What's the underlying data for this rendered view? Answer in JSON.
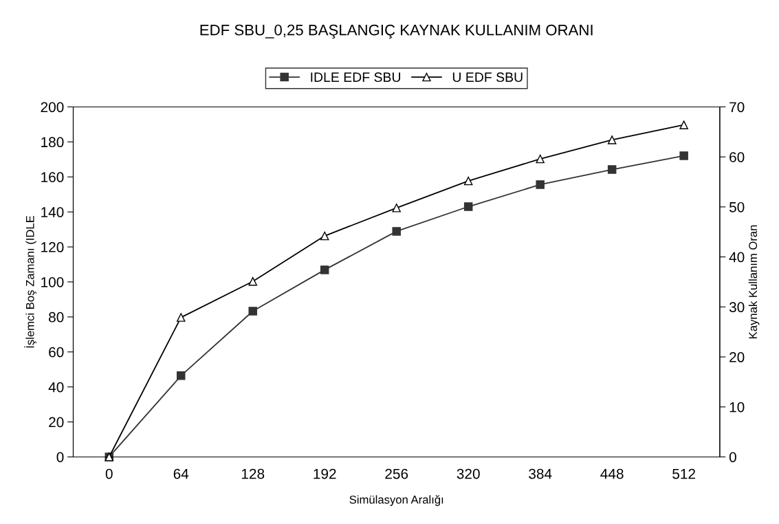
{
  "chart_data": {
    "type": "line",
    "title": "EDF SBU_0,25 BAŞLANGIÇ KAYNAK KULLANIM ORANI",
    "xlabel": "Simülasyon Aralığı",
    "ylabel": "İşlemci Boş Zamanı (IDLE",
    "y2label": "Kaynak Kullanım Oran",
    "categories": [
      "0",
      "64",
      "128",
      "192",
      "256",
      "320",
      "384",
      "448",
      "512"
    ],
    "series": [
      {
        "name": "IDLE EDF SBU",
        "color": "#333333",
        "marker": "square",
        "values": [
          0,
          46.4,
          83.3,
          106.9,
          128.9,
          143,
          155.6,
          164.2,
          172.1
        ]
      },
      {
        "name": "U EDF SBU",
        "color": "#000000",
        "marker": "triangle",
        "axis": "y2",
        "values": [
          0,
          27.9,
          35.1,
          44.2,
          49.8,
          55.2,
          59.6,
          63.4,
          66.4
        ]
      }
    ],
    "ylim": [
      0,
      200
    ],
    "yticks": [
      0,
      20,
      40,
      60,
      80,
      100,
      120,
      140,
      160,
      180,
      200
    ],
    "y2lim": [
      0,
      70
    ],
    "y2ticks": [
      0,
      10,
      20,
      30,
      40,
      50,
      60,
      70
    ],
    "grid": false,
    "legend": "top",
    "line_style": "solid"
  }
}
